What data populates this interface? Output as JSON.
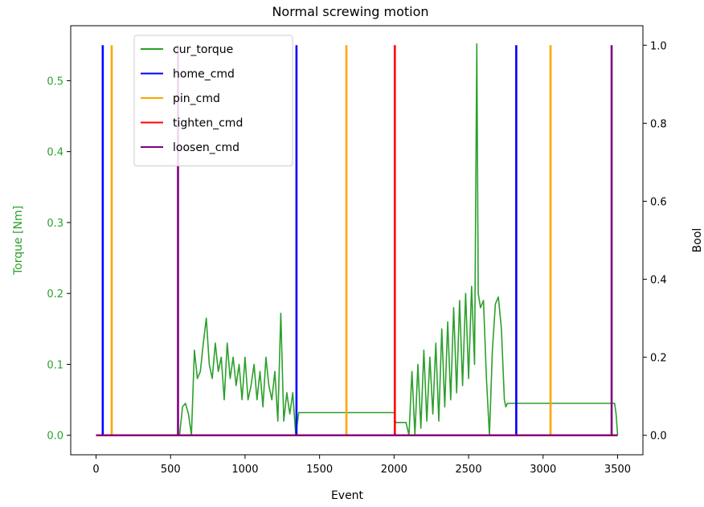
{
  "chart_data": {
    "type": "line",
    "title": "Normal screwing motion",
    "xlabel": "Event",
    "ylabel_left": "Torque [Nm]",
    "ylabel_right": "Bool",
    "xlim": [
      -170,
      3670
    ],
    "ylim_left": [
      -0.0275,
      0.5775
    ],
    "ylim_right": [
      -0.05,
      1.05
    ],
    "x_ticks": [
      0,
      500,
      1000,
      1500,
      2000,
      2500,
      3000,
      3500
    ],
    "x_tick_labels": [
      "0",
      "500",
      "1000",
      "1500",
      "2000",
      "2500",
      "3000",
      "3500"
    ],
    "y_left_ticks": [
      0.0,
      0.1,
      0.2,
      0.3,
      0.4,
      0.5
    ],
    "y_left_tick_labels": [
      "0.0",
      "0.1",
      "0.2",
      "0.3",
      "0.4",
      "0.5"
    ],
    "y_right_ticks": [
      0.0,
      0.2,
      0.4,
      0.6,
      0.8,
      1.0
    ],
    "y_right_tick_labels": [
      "0.0",
      "0.2",
      "0.4",
      "0.6",
      "0.8",
      "1.0"
    ],
    "grid": false,
    "legend_position": "top-left",
    "series": [
      {
        "name": "cur_torque",
        "axis": "left",
        "color": "#2ca02c",
        "x": [
          0,
          560,
          580,
          600,
          620,
          640,
          660,
          680,
          700,
          720,
          740,
          760,
          780,
          800,
          820,
          840,
          860,
          880,
          900,
          920,
          940,
          960,
          980,
          1000,
          1020,
          1040,
          1060,
          1080,
          1100,
          1120,
          1140,
          1160,
          1180,
          1200,
          1220,
          1240,
          1260,
          1280,
          1300,
          1320,
          1340,
          1360,
          1400,
          1600,
          2000,
          2010,
          2080,
          2100,
          2120,
          2140,
          2160,
          2180,
          2200,
          2220,
          2240,
          2260,
          2280,
          2300,
          2320,
          2340,
          2360,
          2380,
          2400,
          2420,
          2440,
          2460,
          2480,
          2500,
          2520,
          2540,
          2555,
          2565,
          2580,
          2600,
          2620,
          2640,
          2660,
          2680,
          2700,
          2720,
          2740,
          2750,
          2760,
          2800,
          2900,
          3200,
          3480,
          3490,
          3500
        ],
        "y": [
          0,
          0,
          0.04,
          0.045,
          0.03,
          0.0,
          0.12,
          0.08,
          0.09,
          0.13,
          0.165,
          0.1,
          0.08,
          0.13,
          0.09,
          0.11,
          0.05,
          0.13,
          0.08,
          0.11,
          0.07,
          0.1,
          0.05,
          0.11,
          0.05,
          0.07,
          0.1,
          0.05,
          0.09,
          0.04,
          0.11,
          0.07,
          0.05,
          0.09,
          0.02,
          0.172,
          0.02,
          0.06,
          0.03,
          0.06,
          0.0,
          0.032,
          0.032,
          0.032,
          0.032,
          0.018,
          0.018,
          0.0,
          0.09,
          0.0,
          0.1,
          0.01,
          0.12,
          0.02,
          0.11,
          0.03,
          0.13,
          0.02,
          0.15,
          0.04,
          0.16,
          0.05,
          0.18,
          0.06,
          0.19,
          0.07,
          0.2,
          0.08,
          0.21,
          0.1,
          0.552,
          0.2,
          0.18,
          0.19,
          0.08,
          0.0,
          0.12,
          0.185,
          0.195,
          0.15,
          0.05,
          0.04,
          0.045,
          0.045,
          0.045,
          0.045,
          0.045,
          0.03,
          0.0
        ]
      },
      {
        "name": "home_cmd",
        "axis": "right",
        "color": "#0000ff",
        "pulses": [
          45,
          1345,
          2820
        ]
      },
      {
        "name": "pin_cmd",
        "axis": "right",
        "color": "#ffa500",
        "pulses": [
          105,
          1680,
          3050
        ]
      },
      {
        "name": "tighten_cmd",
        "axis": "right",
        "color": "#ff0000",
        "pulses": [
          2005
        ]
      },
      {
        "name": "loosen_cmd",
        "axis": "right",
        "color": "#800080",
        "pulses": [
          550,
          3460
        ]
      }
    ]
  }
}
